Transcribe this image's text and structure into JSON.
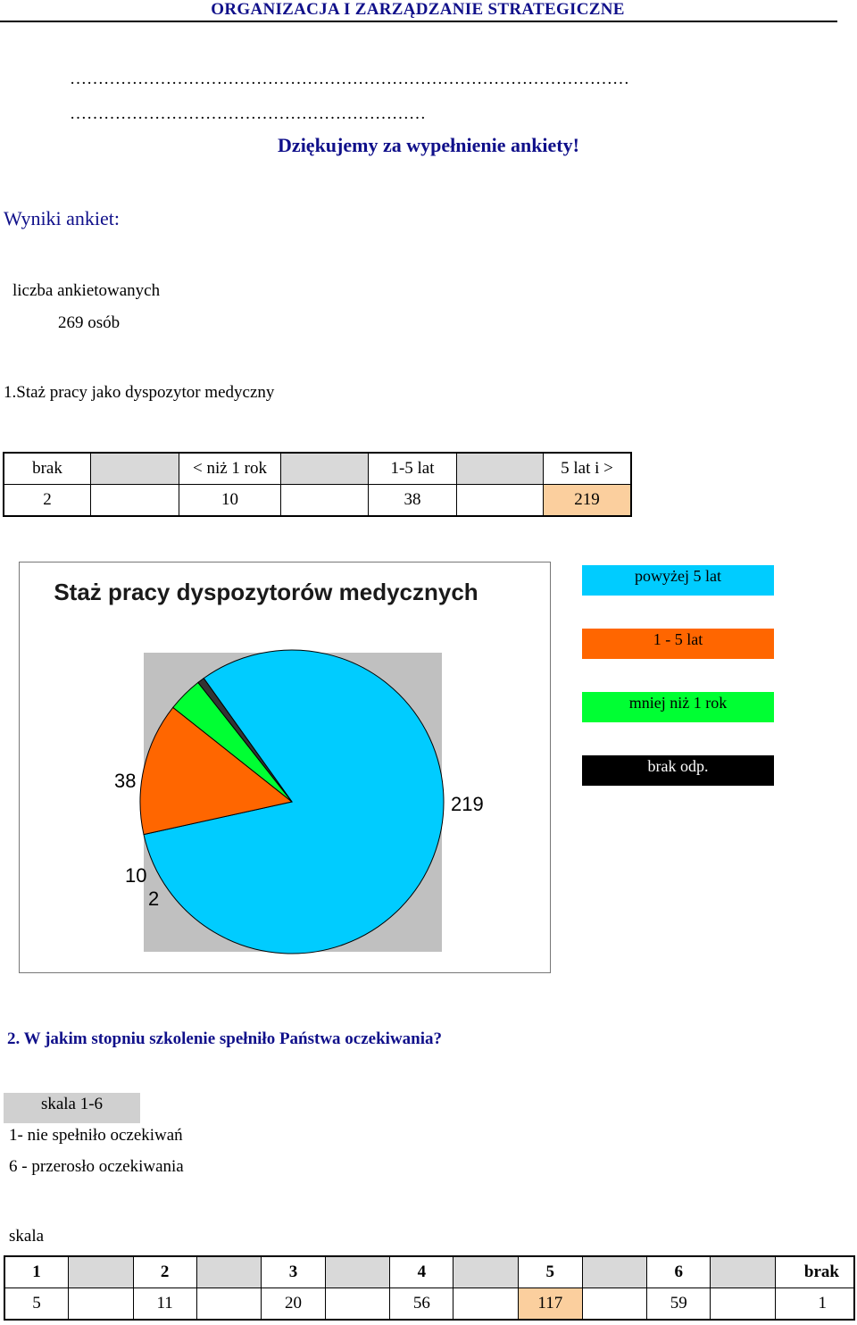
{
  "header": {
    "title": "ORGANIZACJA I ZARZĄDZANIE STRATEGICZNE"
  },
  "dots": {
    "line1": "………………………………………………………………………………………",
    "line2": "………………………………………………………"
  },
  "thanks": "Dziękujemy za wypełnienie ankiety!",
  "results": {
    "heading": "Wyniki ankiet:",
    "respondents_label": "liczba ankietowanych",
    "respondents_value": "269 osób"
  },
  "q1": {
    "title": "1.Staż pracy jako dyspozytor medyczny",
    "headers": [
      "brak",
      "< niż 1 rok",
      "1-5 lat",
      "5 lat i >"
    ],
    "values": [
      "2",
      "10",
      "38",
      "219"
    ]
  },
  "chart_data": {
    "type": "pie",
    "title": "Staż pracy dyspozytorów medycznych",
    "slices": [
      {
        "label": "powyżej 5 lat",
        "value": 219,
        "color": "#00ccff"
      },
      {
        "label": "1 - 5 lat",
        "value": 38,
        "color": "#ff6600"
      },
      {
        "label": "mniej niż 1 rok",
        "value": 10,
        "color": "#00ff33"
      },
      {
        "label": "brak odp.",
        "value": 2,
        "color": "#333333"
      }
    ],
    "data_labels": [
      "219",
      "38",
      "10",
      "2"
    ],
    "legend_position": "right",
    "plot_background": "#c0c0c0"
  },
  "q2": {
    "title": "2. W jakim stopniu szkolenie spełniło Państwa oczekiwania?",
    "scale_label": "skala 1-6",
    "scale_min_desc": "1- nie spełniło oczekiwań",
    "scale_max_desc": "6 - przerosło oczekiwania",
    "table_caption": "skala",
    "headers": [
      "1",
      "2",
      "3",
      "4",
      "5",
      "6",
      "brak"
    ],
    "values": [
      "5",
      "11",
      "20",
      "56",
      "117",
      "59",
      "1"
    ]
  }
}
